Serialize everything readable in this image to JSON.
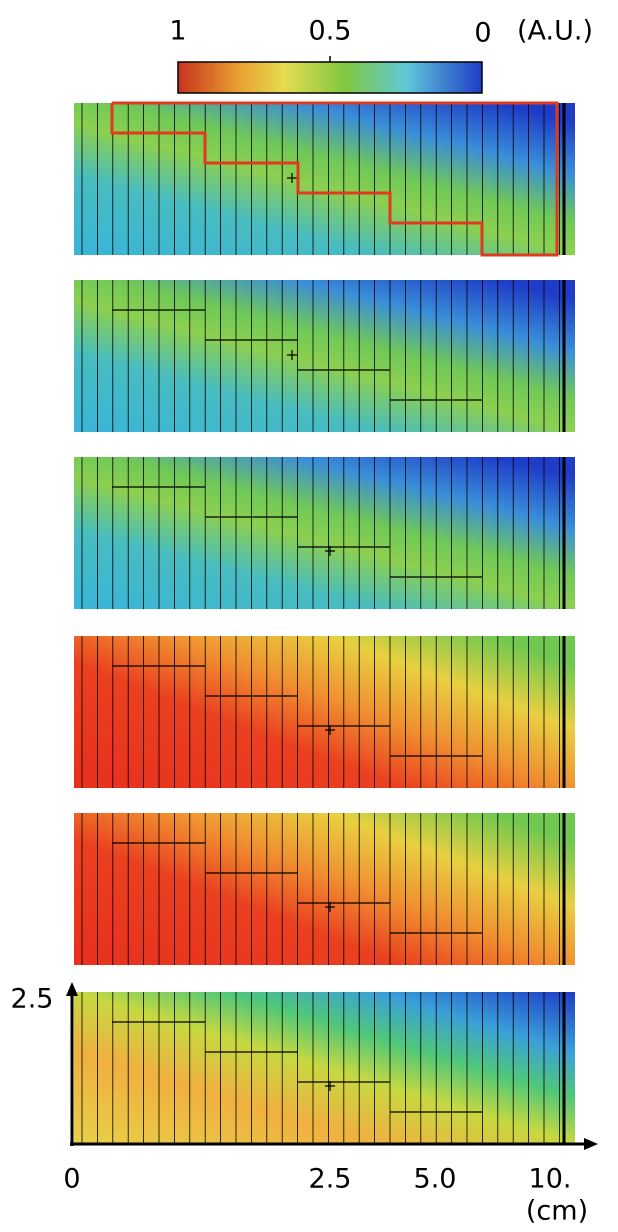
{
  "colorbar": {
    "labels": [
      "1",
      "0.5",
      "0"
    ],
    "unit": "(A.U.)"
  },
  "y_axis": {
    "label": "2.5"
  },
  "x_axis": {
    "labels": [
      "0",
      "2.5",
      "5.0",
      "10."
    ],
    "unit": "(cm)"
  }
}
